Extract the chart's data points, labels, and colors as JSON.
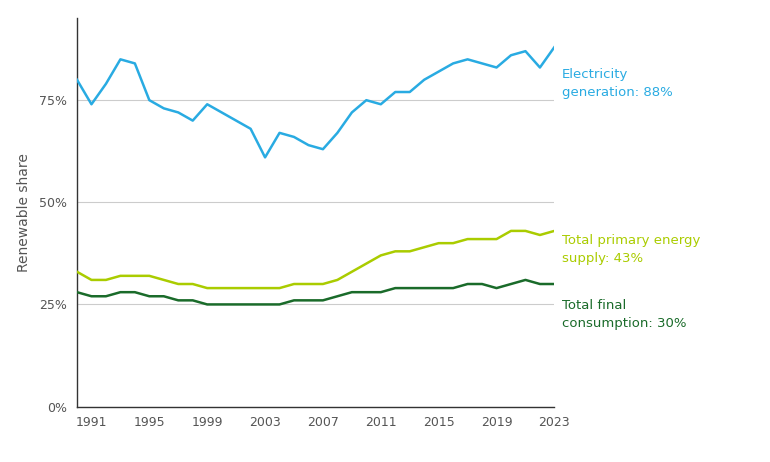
{
  "years": [
    1990,
    1991,
    1992,
    1993,
    1994,
    1995,
    1996,
    1997,
    1998,
    1999,
    2000,
    2001,
    2002,
    2003,
    2004,
    2005,
    2006,
    2007,
    2008,
    2009,
    2010,
    2011,
    2012,
    2013,
    2014,
    2015,
    2016,
    2017,
    2018,
    2019,
    2020,
    2021,
    2022,
    2023
  ],
  "electricity_generation": [
    80,
    74,
    79,
    85,
    84,
    75,
    73,
    72,
    70,
    74,
    72,
    70,
    68,
    61,
    67,
    66,
    64,
    63,
    67,
    72,
    75,
    74,
    77,
    77,
    80,
    82,
    84,
    85,
    84,
    83,
    86,
    87,
    83,
    88
  ],
  "total_primary_supply": [
    33,
    31,
    31,
    32,
    32,
    32,
    31,
    30,
    30,
    29,
    29,
    29,
    29,
    29,
    29,
    30,
    30,
    30,
    31,
    33,
    35,
    37,
    38,
    38,
    39,
    40,
    40,
    41,
    41,
    41,
    43,
    43,
    42,
    43
  ],
  "total_final_consumption": [
    28,
    27,
    27,
    28,
    28,
    27,
    27,
    26,
    26,
    25,
    25,
    25,
    25,
    25,
    25,
    26,
    26,
    26,
    27,
    28,
    28,
    28,
    29,
    29,
    29,
    29,
    29,
    30,
    30,
    29,
    30,
    31,
    30,
    30
  ],
  "elec_color": "#29ABE2",
  "supply_color": "#AACC00",
  "consumption_color": "#1A6B2A",
  "elec_label": "Electricity\ngeneration: 88%",
  "supply_label": "Total primary energy\nsupply: 43%",
  "consumption_label": "Total final\nconsumption: 30%",
  "ylabel": "Renewable share",
  "yticks": [
    0,
    25,
    50,
    75
  ],
  "xticks": [
    1991,
    1995,
    1999,
    2003,
    2007,
    2011,
    2015,
    2019,
    2023
  ],
  "ylim": [
    0,
    95
  ],
  "xlim_start": 1990,
  "xlim_end": 2023,
  "background_color": "#ffffff",
  "grid_color": "#cccccc",
  "linewidth": 1.8,
  "tick_color": "#555555",
  "tick_fontsize": 9,
  "label_fontsize": 9.5,
  "ylabel_fontsize": 10
}
